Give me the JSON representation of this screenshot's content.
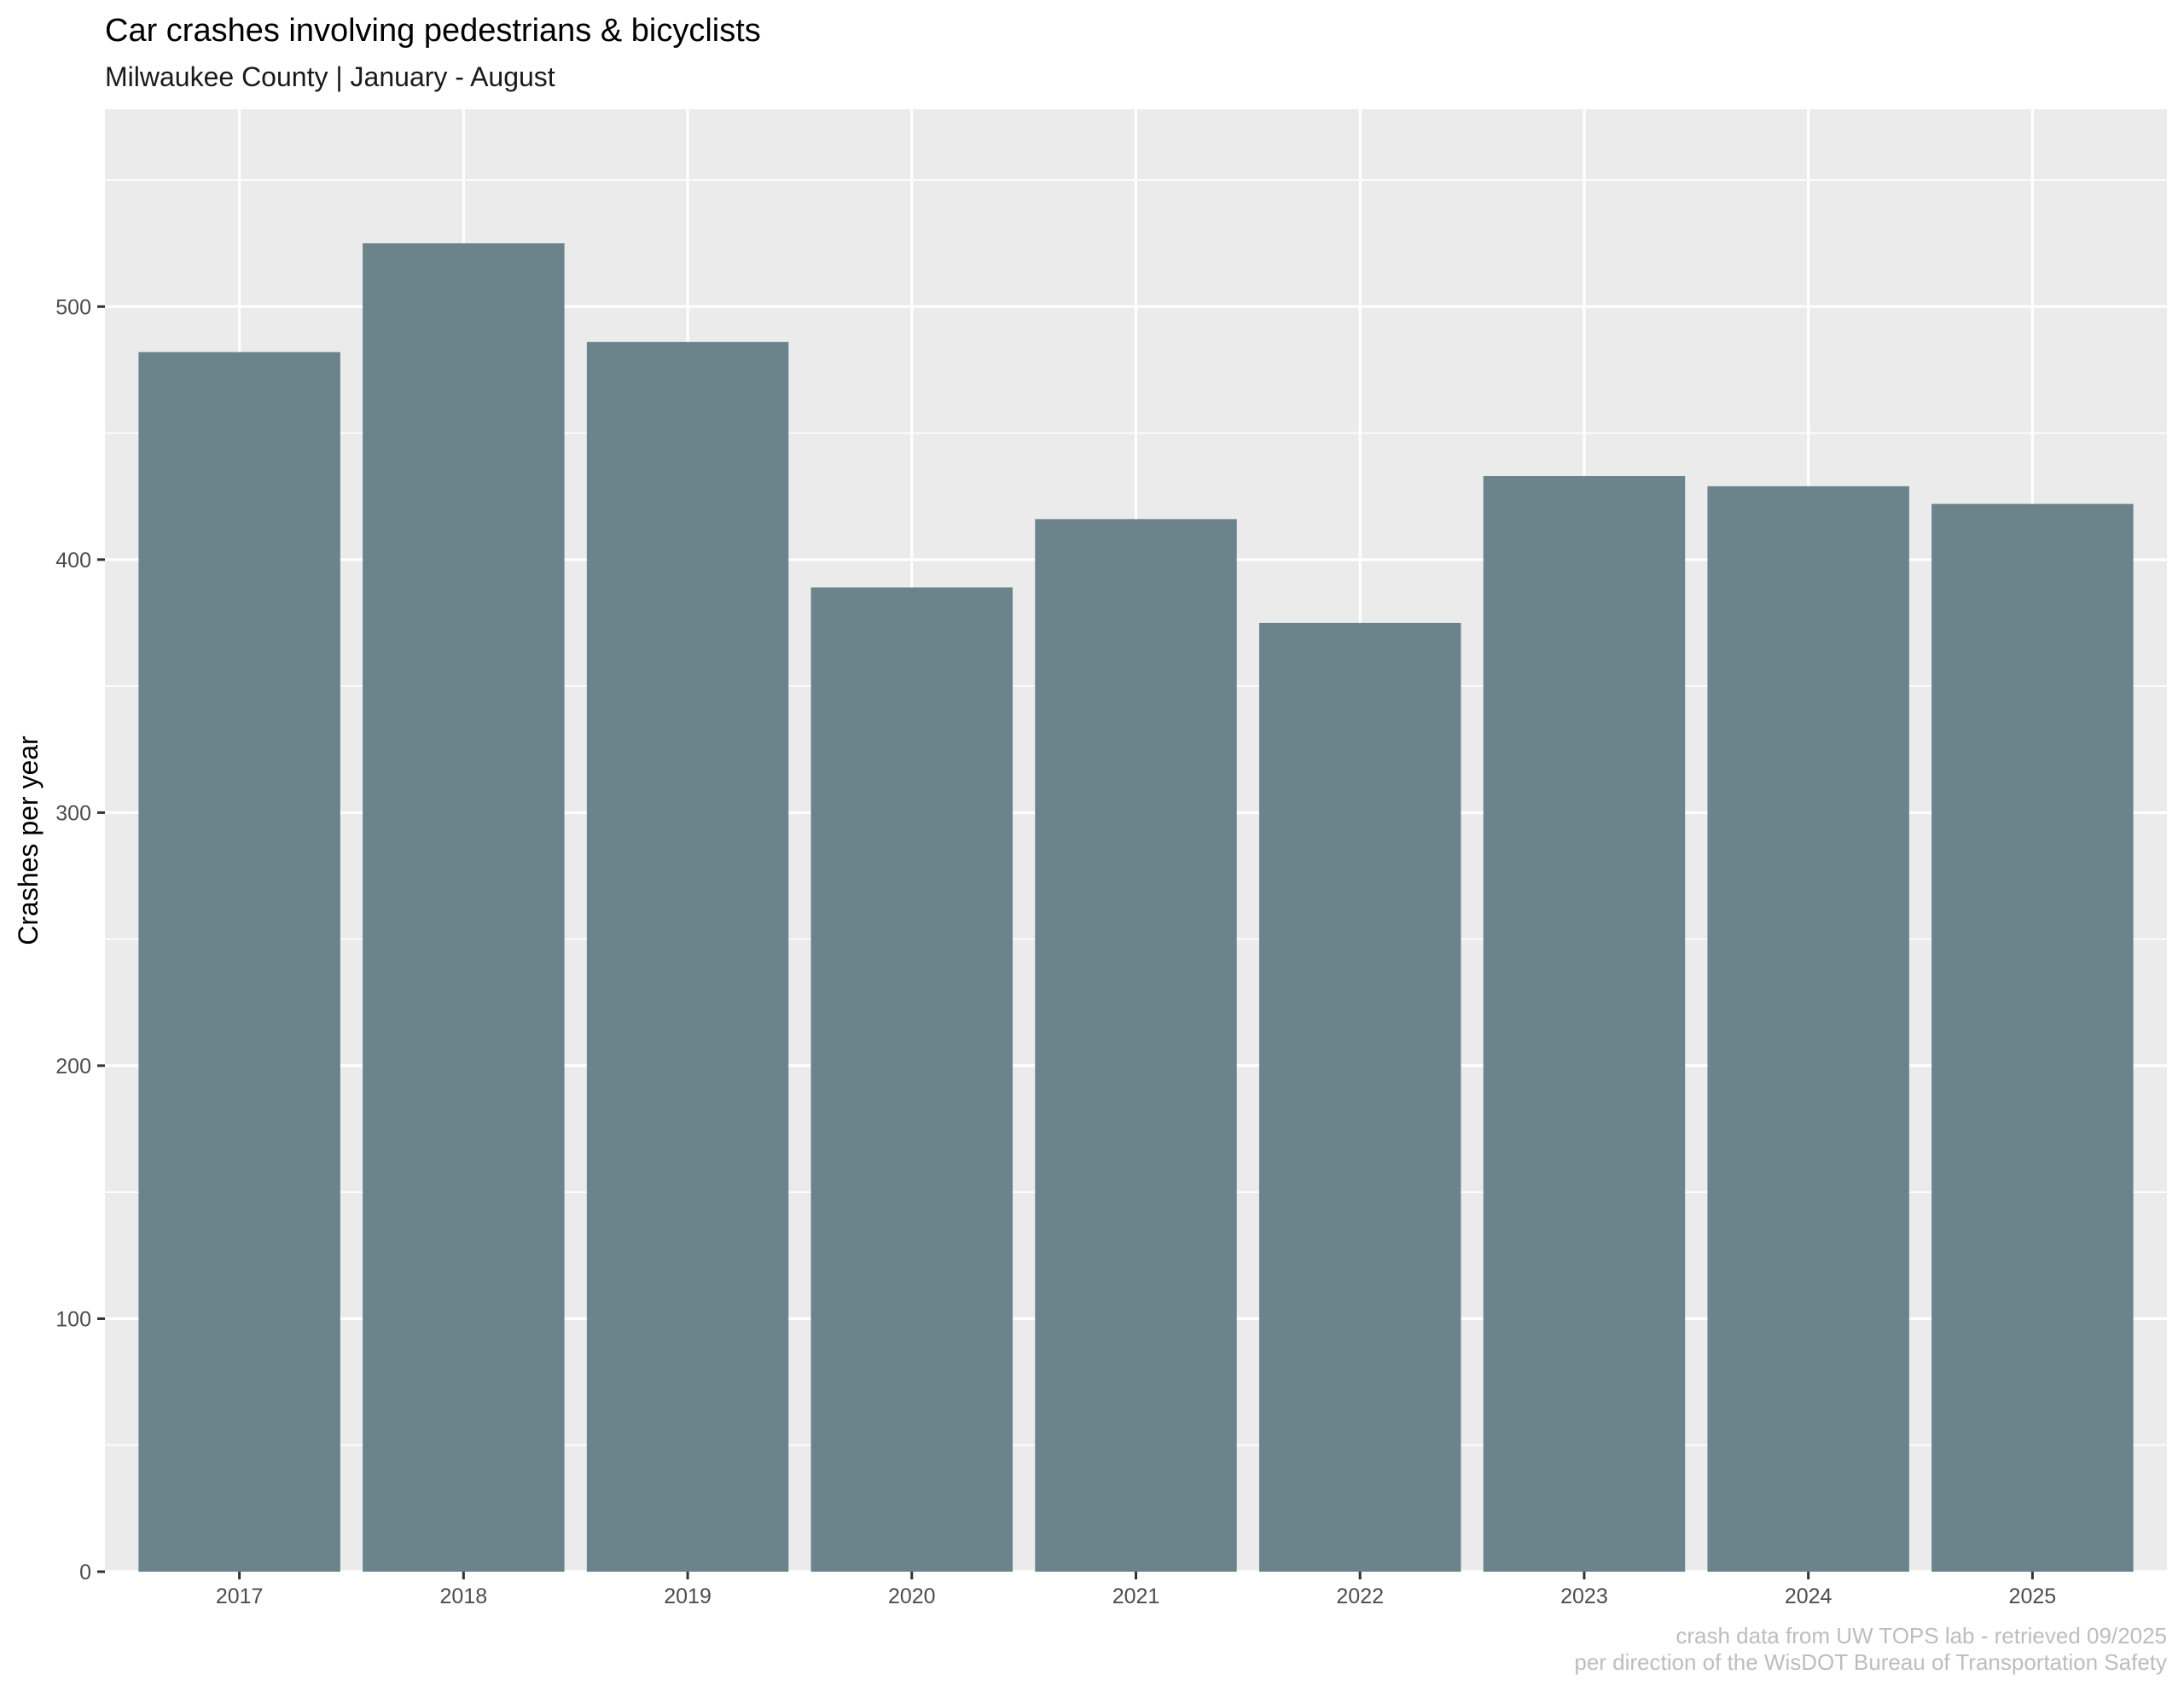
{
  "chart_data": {
    "type": "bar",
    "title": "Car crashes involving pedestrians & bicyclists",
    "subtitle": "Milwaukee County | January - August",
    "xlabel": "",
    "ylabel": "Crashes per year",
    "categories": [
      "2017",
      "2018",
      "2019",
      "2020",
      "2021",
      "2022",
      "2023",
      "2024",
      "2025"
    ],
    "values": [
      482,
      525,
      486,
      389,
      416,
      375,
      433,
      429,
      422
    ],
    "ylim": [
      0,
      578
    ],
    "yticks": [
      0,
      100,
      200,
      300,
      400,
      500
    ],
    "y_minor_ticks": [
      50,
      150,
      250,
      350,
      450,
      550
    ],
    "grid": true,
    "bar_color": "#6b838b",
    "panel_background": "#ebebeb",
    "grid_color": "#ffffff",
    "caption": [
      "crash data from UW TOPS lab - retrieved 09/2025",
      "per direction of the WisDOT Bureau of Transportation Safety"
    ]
  }
}
